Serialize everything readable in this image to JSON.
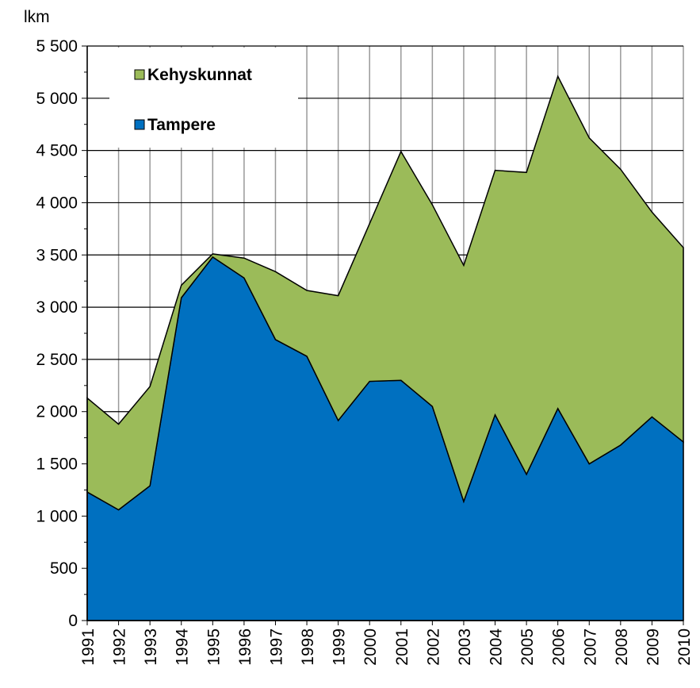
{
  "chart_data": {
    "type": "stacked_area",
    "y_label": "lkm",
    "categories": [
      "1991",
      "1992",
      "1993",
      "1994",
      "1995",
      "1996",
      "1997",
      "1998",
      "1999",
      "2000",
      "2001",
      "2002",
      "2003",
      "2004",
      "2005",
      "2006",
      "2007",
      "2008",
      "2009",
      "2010"
    ],
    "series": [
      {
        "name": "Tampere",
        "color": "#0070c0",
        "values": [
          1230,
          1060,
          1290,
          3090,
          3480,
          3280,
          2690,
          2530,
          1915,
          2290,
          2300,
          2050,
          1140,
          1970,
          1400,
          2030,
          1500,
          1680,
          1950,
          1710
        ]
      },
      {
        "name": "Kehyskunnat",
        "color": "#9bbb59",
        "values": [
          900,
          820,
          950,
          120,
          30,
          190,
          650,
          630,
          1195,
          1510,
          2190,
          1930,
          2260,
          2340,
          2890,
          3180,
          3120,
          2640,
          1960,
          1860
        ]
      }
    ],
    "ylim": [
      0,
      5500
    ],
    "yticks": [
      0,
      500,
      {
        "value": 1000,
        "label": "1 000"
      },
      {
        "value": 1500,
        "label": "1 500"
      },
      {
        "value": 2000,
        "label": "2 000"
      },
      {
        "value": 2500,
        "label": "2 500"
      },
      {
        "value": 3000,
        "label": "3 000"
      },
      {
        "value": 3500,
        "label": "3 500"
      },
      {
        "value": 4000,
        "label": "4 000"
      },
      {
        "value": 4500,
        "label": "4 500"
      },
      {
        "value": 5000,
        "label": "5 000"
      },
      {
        "value": 5500,
        "label": "5 500"
      }
    ],
    "grid": true
  }
}
